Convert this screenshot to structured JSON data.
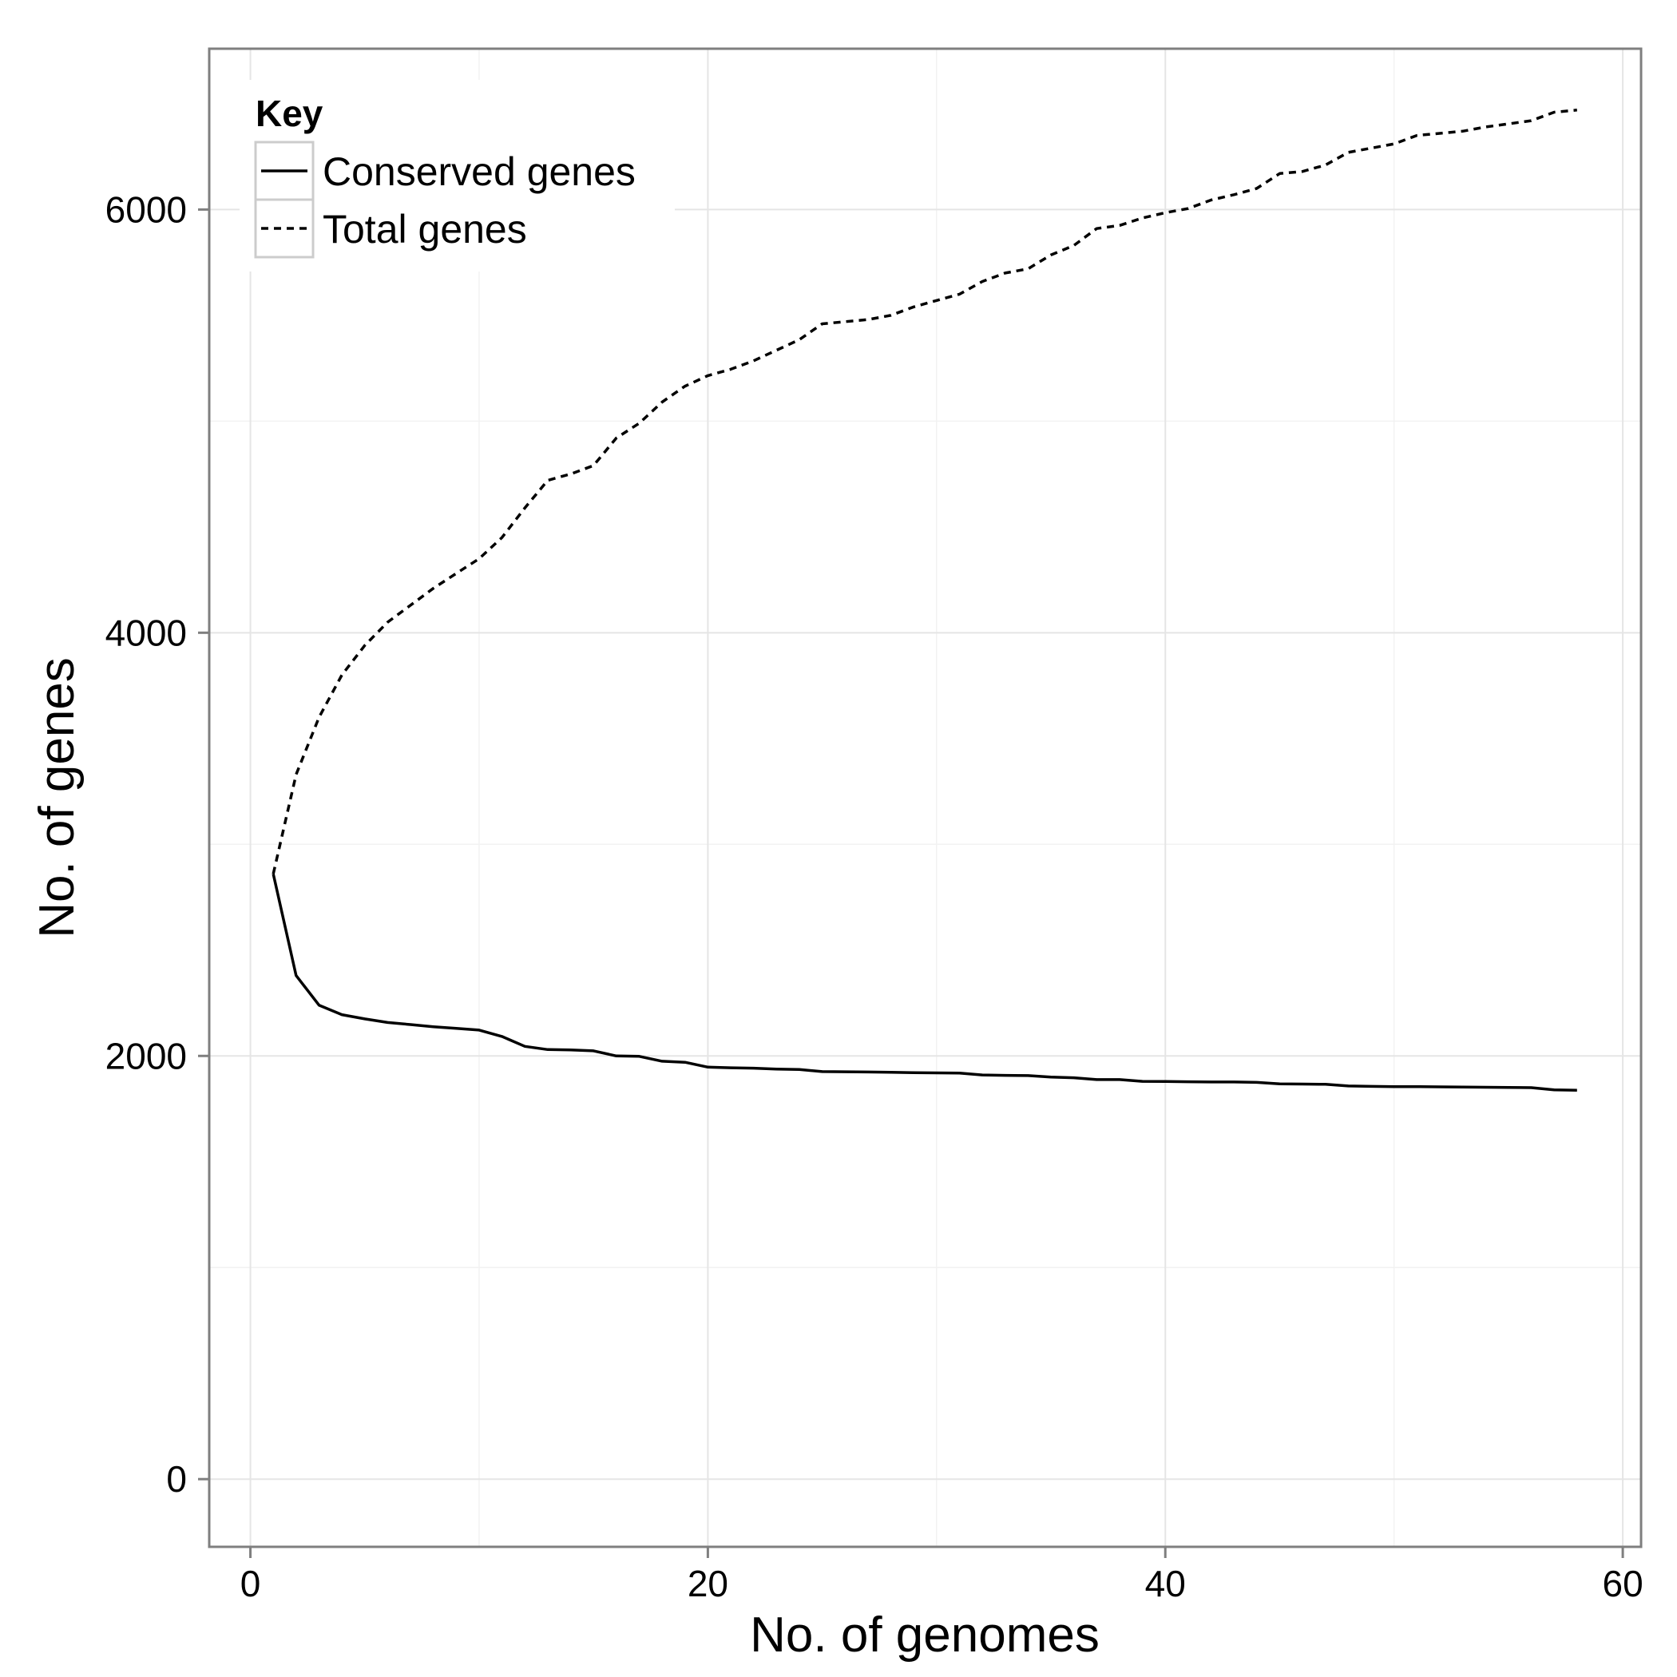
{
  "chart_data": {
    "type": "line",
    "title": "",
    "xlabel": "No. of genomes",
    "ylabel": "No. of genes",
    "xlim": [
      -1.8,
      60.8
    ],
    "ylim": [
      -320,
      6760
    ],
    "x_ticks": [
      0,
      20,
      40,
      60
    ],
    "y_ticks": [
      0,
      2000,
      4000,
      6000
    ],
    "x_tick_labels": [
      "0",
      "20",
      "40",
      "60"
    ],
    "y_tick_labels": [
      "0",
      "2000",
      "4000",
      "6000"
    ],
    "grid": true,
    "legend": {
      "title": "Key",
      "position": "top-left"
    },
    "x": [
      1,
      2,
      3,
      4,
      5,
      6,
      7,
      8,
      9,
      10,
      11,
      12,
      13,
      14,
      15,
      16,
      17,
      18,
      19,
      20,
      21,
      22,
      23,
      24,
      25,
      26,
      27,
      28,
      29,
      30,
      31,
      32,
      33,
      34,
      35,
      36,
      37,
      38,
      39,
      40,
      41,
      42,
      43,
      44,
      45,
      46,
      47,
      48,
      49,
      50,
      51,
      52,
      53,
      54,
      55,
      56,
      57,
      58
    ],
    "series": [
      {
        "name": "Conserved genes",
        "style": "solid",
        "values": [
          2860,
          2380,
          2240,
          2195,
          2175,
          2158,
          2148,
          2138,
          2130,
          2122,
          2092,
          2045,
          2030,
          2028,
          2024,
          2000,
          1998,
          1975,
          1970,
          1947,
          1944,
          1942,
          1938,
          1936,
          1926,
          1925,
          1924,
          1923,
          1921,
          1920,
          1919,
          1910,
          1908,
          1907,
          1900,
          1897,
          1888,
          1888,
          1880,
          1879,
          1878,
          1877,
          1877,
          1875,
          1868,
          1867,
          1866,
          1858,
          1856,
          1855,
          1855,
          1854,
          1853,
          1852,
          1851,
          1850,
          1840,
          1838
        ]
      },
      {
        "name": "Total genes",
        "style": "dashed",
        "values": [
          2860,
          3330,
          3600,
          3800,
          3940,
          4050,
          4130,
          4210,
          4280,
          4350,
          4450,
          4590,
          4720,
          4750,
          4790,
          4920,
          4990,
          5090,
          5165,
          5215,
          5245,
          5285,
          5335,
          5385,
          5460,
          5470,
          5480,
          5500,
          5540,
          5570,
          5600,
          5660,
          5700,
          5720,
          5785,
          5830,
          5910,
          5925,
          5960,
          5985,
          6005,
          6045,
          6070,
          6100,
          6170,
          6180,
          6210,
          6270,
          6290,
          6310,
          6350,
          6360,
          6370,
          6390,
          6405,
          6420,
          6460,
          6470
        ]
      }
    ]
  }
}
